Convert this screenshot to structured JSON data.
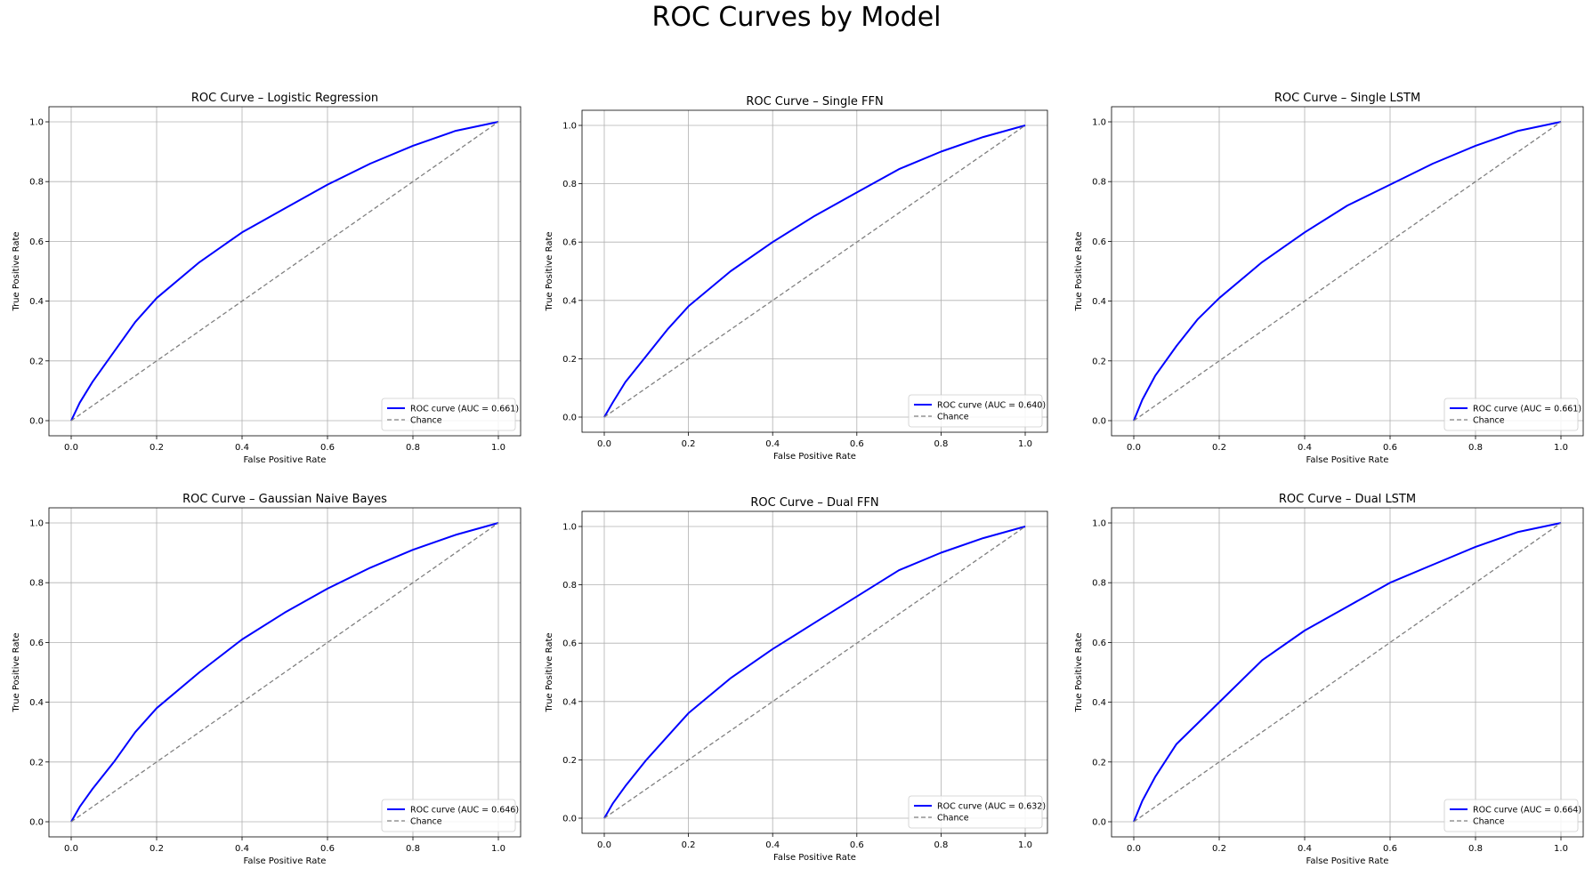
{
  "figure_title": "ROC Curves by Model",
  "colors": {
    "roc_line": "#0000ff",
    "chance_line": "#808080",
    "grid": "#b0b0b0",
    "axes": "#000000"
  },
  "chart_data": [
    {
      "type": "line",
      "title": "ROC Curve – Logistic Regression",
      "xlabel": "False Positive Rate",
      "ylabel": "True Positive Rate",
      "xlim": [
        0,
        1
      ],
      "ylim": [
        0,
        1
      ],
      "ticks": [
        "0.0",
        "0.2",
        "0.4",
        "0.6",
        "0.8",
        "1.0"
      ],
      "grid": true,
      "legend_position": "lower right",
      "series": [
        {
          "name": "ROC curve (AUC = 0.661)",
          "x": [
            0,
            0.02,
            0.05,
            0.1,
            0.15,
            0.2,
            0.3,
            0.4,
            0.5,
            0.6,
            0.7,
            0.8,
            0.9,
            1.0
          ],
          "y": [
            0,
            0.06,
            0.13,
            0.23,
            0.33,
            0.41,
            0.53,
            0.63,
            0.71,
            0.79,
            0.86,
            0.92,
            0.97,
            1.0
          ]
        },
        {
          "name": "Chance",
          "x": [
            0,
            1
          ],
          "y": [
            0,
            1
          ],
          "dashed": true
        }
      ]
    },
    {
      "type": "line",
      "title": "ROC Curve – Single FFN",
      "xlabel": "False Positive Rate",
      "ylabel": "True Positive Rate",
      "xlim": [
        0,
        1
      ],
      "ylim": [
        0,
        1
      ],
      "ticks": [
        "0.0",
        "0.2",
        "0.4",
        "0.6",
        "0.8",
        "1.0"
      ],
      "grid": true,
      "legend_position": "lower right",
      "series": [
        {
          "name": "ROC curve (AUC = 0.640)",
          "x": [
            0,
            0.02,
            0.05,
            0.1,
            0.15,
            0.2,
            0.3,
            0.4,
            0.5,
            0.6,
            0.7,
            0.8,
            0.9,
            1.0
          ],
          "y": [
            0,
            0.05,
            0.12,
            0.21,
            0.3,
            0.38,
            0.5,
            0.6,
            0.69,
            0.77,
            0.85,
            0.91,
            0.96,
            1.0
          ]
        },
        {
          "name": "Chance",
          "x": [
            0,
            1
          ],
          "y": [
            0,
            1
          ],
          "dashed": true
        }
      ]
    },
    {
      "type": "line",
      "title": "ROC Curve – Single LSTM",
      "xlabel": "False Positive Rate",
      "ylabel": "True Positive Rate",
      "xlim": [
        0,
        1
      ],
      "ylim": [
        0,
        1
      ],
      "ticks": [
        "0.0",
        "0.2",
        "0.4",
        "0.6",
        "0.8",
        "1.0"
      ],
      "grid": true,
      "legend_position": "lower right",
      "series": [
        {
          "name": "ROC curve (AUC = 0.661)",
          "x": [
            0,
            0.02,
            0.05,
            0.1,
            0.15,
            0.2,
            0.3,
            0.4,
            0.5,
            0.6,
            0.7,
            0.8,
            0.9,
            1.0
          ],
          "y": [
            0,
            0.07,
            0.15,
            0.25,
            0.34,
            0.41,
            0.53,
            0.63,
            0.72,
            0.79,
            0.86,
            0.92,
            0.97,
            1.0
          ]
        },
        {
          "name": "Chance",
          "x": [
            0,
            1
          ],
          "y": [
            0,
            1
          ],
          "dashed": true
        }
      ]
    },
    {
      "type": "line",
      "title": "ROC Curve – Gaussian Naive Bayes",
      "xlabel": "False Positive Rate",
      "ylabel": "True Positive Rate",
      "xlim": [
        0,
        1
      ],
      "ylim": [
        0,
        1
      ],
      "ticks": [
        "0.0",
        "0.2",
        "0.4",
        "0.6",
        "0.8",
        "1.0"
      ],
      "grid": true,
      "legend_position": "lower right",
      "series": [
        {
          "name": "ROC curve (AUC = 0.646)",
          "x": [
            0,
            0.02,
            0.05,
            0.1,
            0.15,
            0.2,
            0.3,
            0.4,
            0.5,
            0.6,
            0.7,
            0.8,
            0.9,
            1.0
          ],
          "y": [
            0,
            0.05,
            0.11,
            0.2,
            0.3,
            0.38,
            0.5,
            0.61,
            0.7,
            0.78,
            0.85,
            0.91,
            0.96,
            1.0
          ]
        },
        {
          "name": "Chance",
          "x": [
            0,
            1
          ],
          "y": [
            0,
            1
          ],
          "dashed": true
        }
      ]
    },
    {
      "type": "line",
      "title": "ROC Curve – Dual FFN",
      "xlabel": "False Positive Rate",
      "ylabel": "True Positive Rate",
      "xlim": [
        0,
        1
      ],
      "ylim": [
        0,
        1
      ],
      "ticks": [
        "0.0",
        "0.2",
        "0.4",
        "0.6",
        "0.8",
        "1.0"
      ],
      "grid": true,
      "legend_position": "lower right",
      "series": [
        {
          "name": "ROC curve (AUC = 0.632)",
          "x": [
            0,
            0.02,
            0.05,
            0.1,
            0.15,
            0.2,
            0.3,
            0.4,
            0.5,
            0.6,
            0.7,
            0.8,
            0.9,
            1.0
          ],
          "y": [
            0,
            0.05,
            0.11,
            0.2,
            0.28,
            0.36,
            0.48,
            0.58,
            0.67,
            0.76,
            0.85,
            0.91,
            0.96,
            1.0
          ]
        },
        {
          "name": "Chance",
          "x": [
            0,
            1
          ],
          "y": [
            0,
            1
          ],
          "dashed": true
        }
      ]
    },
    {
      "type": "line",
      "title": "ROC Curve – Dual LSTM",
      "xlabel": "False Positive Rate",
      "ylabel": "True Positive Rate",
      "xlim": [
        0,
        1
      ],
      "ylim": [
        0,
        1
      ],
      "ticks": [
        "0.0",
        "0.2",
        "0.4",
        "0.6",
        "0.8",
        "1.0"
      ],
      "grid": true,
      "legend_position": "lower right",
      "series": [
        {
          "name": "ROC curve (AUC = 0.664)",
          "x": [
            0,
            0.02,
            0.05,
            0.1,
            0.15,
            0.2,
            0.3,
            0.4,
            0.5,
            0.6,
            0.7,
            0.8,
            0.9,
            1.0
          ],
          "y": [
            0,
            0.07,
            0.15,
            0.26,
            0.33,
            0.4,
            0.54,
            0.64,
            0.72,
            0.8,
            0.86,
            0.92,
            0.97,
            1.0
          ]
        },
        {
          "name": "Chance",
          "x": [
            0,
            1
          ],
          "y": [
            0,
            1
          ],
          "dashed": true
        }
      ]
    }
  ]
}
